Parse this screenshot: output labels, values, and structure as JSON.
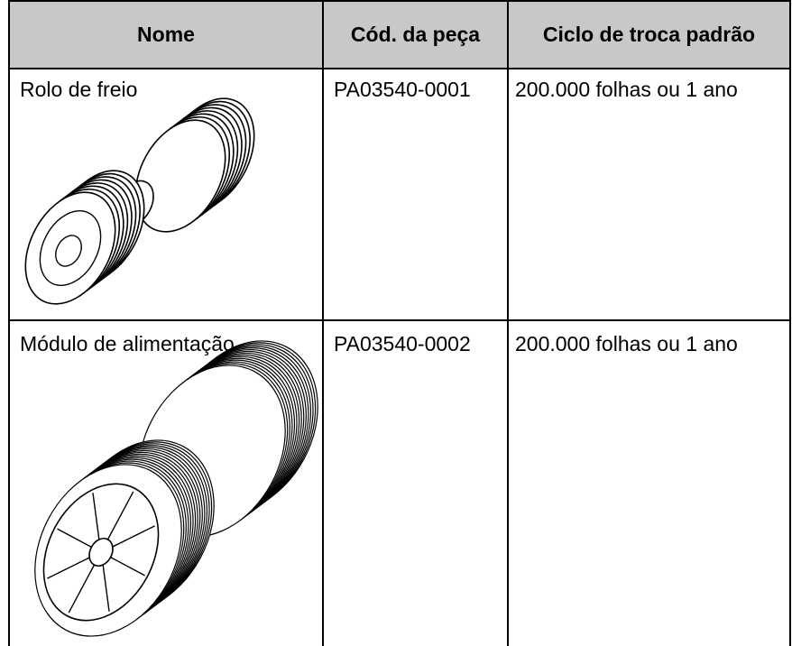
{
  "table": {
    "headers": [
      "Nome",
      "Cód. da peça",
      "Ciclo de troca padrão"
    ],
    "rows": [
      [
        "Rolo de freio",
        "PA03540-0001",
        "200.000 folhas ou 1 ano"
      ],
      [
        "Módulo de alimentação",
        "PA03540-0002",
        "200.000 folhas ou 1 ano"
      ]
    ]
  }
}
